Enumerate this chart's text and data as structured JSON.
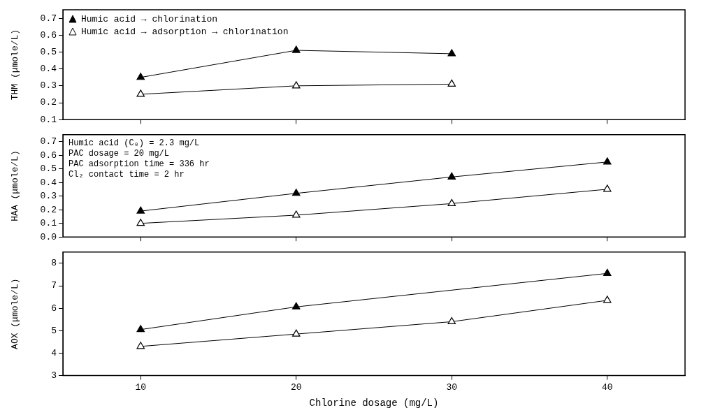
{
  "chart_data": [
    {
      "type": "line",
      "ylabel": "THM (μmole/L)",
      "x": [
        10,
        20,
        30
      ],
      "xlim": [
        5,
        45
      ],
      "xticks": [
        10,
        20,
        30,
        40
      ],
      "ylim": [
        0.1,
        0.75
      ],
      "yticks": [
        0.1,
        0.2,
        0.3,
        0.4,
        0.5,
        0.6,
        0.7
      ],
      "tick_labels": "y",
      "marker": "triangle",
      "legend": "top left",
      "grid": false,
      "series": [
        {
          "name": "Humic acid → chlorination",
          "color": "#000000",
          "values": [
            0.35,
            0.51,
            0.49
          ]
        },
        {
          "name": "Humic acid → adsorption → chlorination",
          "color": "#000000",
          "values": [
            0.25,
            0.3,
            0.31
          ]
        }
      ]
    },
    {
      "type": "line",
      "ylabel": "HAA (μmole/L)",
      "x": [
        10,
        20,
        30,
        40
      ],
      "xlim": [
        5,
        45
      ],
      "xticks": [
        10,
        20,
        30,
        40
      ],
      "ylim": [
        0,
        0.75
      ],
      "yticks": [
        {
          "value": 0,
          "label": "0.0"
        },
        0.1,
        0.2,
        0.3,
        0.4,
        0.5,
        0.6,
        0.7
      ],
      "tick_labels": "y",
      "marker": "triangle",
      "grid": false,
      "annotations": [
        "Humic acid (C₀) = 2.3 mg/L",
        "PAC dosage = 20 mg/L",
        "PAC adsorption time = 336 hr",
        "Cl₂ contact time = 2 hr"
      ],
      "series": [
        {
          "color": "#000000",
          "values": [
            0.19,
            0.32,
            0.44,
            0.55
          ]
        },
        {
          "color": "#000000",
          "values": [
            0.1,
            0.16,
            0.245,
            0.35
          ]
        }
      ]
    },
    {
      "type": "line",
      "ylabel": "AOX (μmole/L)",
      "xlabel": "Chlorine dosage (mg/L)",
      "x": [
        10,
        20,
        30,
        40
      ],
      "xlim": [
        5,
        45
      ],
      "xticks": [
        10,
        20,
        30,
        40
      ],
      "ylim": [
        3,
        8.5
      ],
      "yticks": [
        3,
        4,
        5,
        6,
        7,
        8
      ],
      "marker": "triangle",
      "grid": false,
      "series": [
        {
          "color": "#000000",
          "values": [
            5.05,
            6.06,
            null,
            7.55
          ]
        },
        {
          "color": "#000000",
          "values": [
            4.3,
            4.85,
            5.4,
            6.35
          ]
        }
      ]
    }
  ]
}
